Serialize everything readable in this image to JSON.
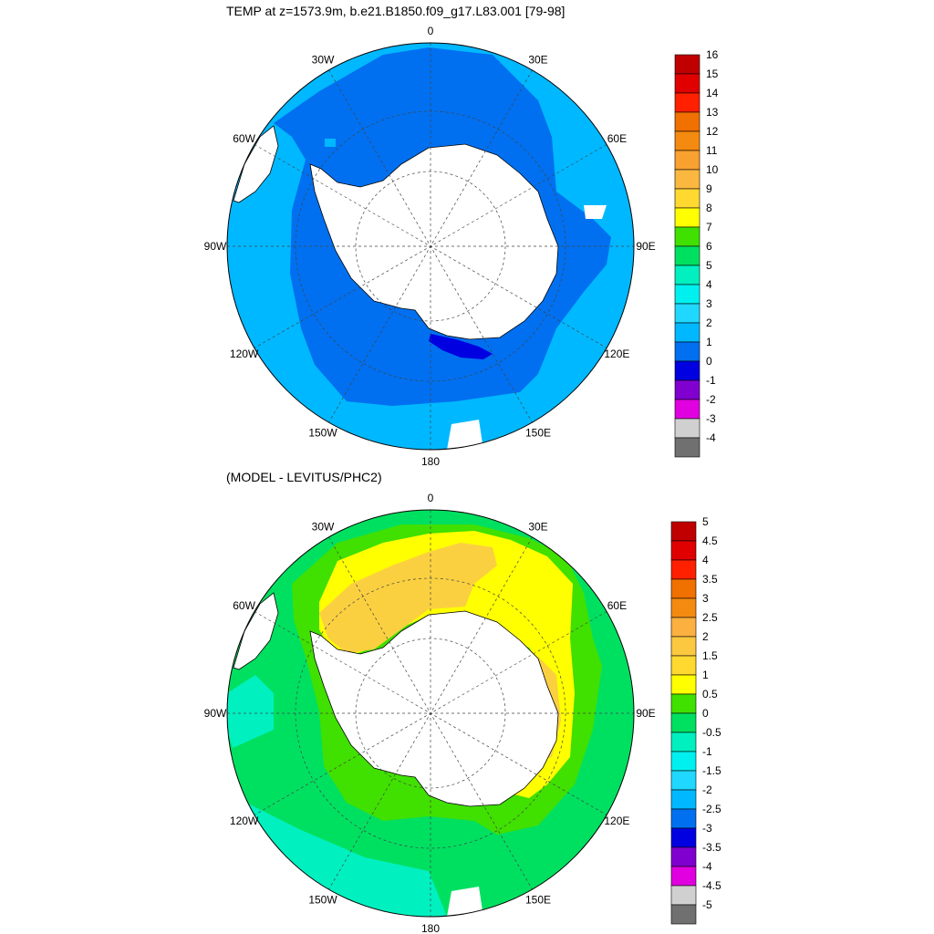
{
  "top": {
    "title": "TEMP at z=1573.9m, b.e21.B1850.f09_g17.L83.001 [79-98]",
    "lon_labels": [
      "0",
      "30E",
      "60E",
      "90E",
      "120E",
      "150E",
      "180",
      "150W",
      "120W",
      "90W",
      "60W",
      "30W"
    ],
    "colorbar": {
      "labels": [
        "16",
        "15",
        "14",
        "13",
        "12",
        "11",
        "10",
        "9",
        "8",
        "7",
        "6",
        "5",
        "4",
        "3",
        "2",
        "1",
        "0",
        "-1",
        "-2",
        "-3",
        "-4"
      ],
      "colors": [
        "#c00000",
        "#e00000",
        "#ff2000",
        "#f07000",
        "#f58a10",
        "#f8a030",
        "#fbb840",
        "#ffd830",
        "#ffff00",
        "#40e000",
        "#00e060",
        "#00f0c0",
        "#00f0f0",
        "#20d8ff",
        "#00b8ff",
        "#0070f0",
        "#0000e0",
        "#8000d0",
        "#e000e0",
        "#d0d0d0",
        "#707070"
      ]
    }
  },
  "bottom": {
    "title": "(MODEL - LEVITUS/PHC2)",
    "lon_labels": [
      "0",
      "30E",
      "60E",
      "90E",
      "120E",
      "150E",
      "180",
      "150W",
      "120W",
      "90W",
      "60W",
      "30W"
    ],
    "colorbar": {
      "labels": [
        "5",
        "4.5",
        "4",
        "3.5",
        "3",
        "2.5",
        "2",
        "1.5",
        "1",
        "0.5",
        "0",
        "-0.5",
        "-1",
        "-1.5",
        "-2",
        "-2.5",
        "-3",
        "-3.5",
        "-4",
        "-4.5",
        "-5"
      ],
      "colors": [
        "#c00000",
        "#e00000",
        "#ff2000",
        "#f07000",
        "#f58a10",
        "#fbb040",
        "#fbc840",
        "#ffd830",
        "#ffff00",
        "#40e000",
        "#00e060",
        "#00f0c0",
        "#00f0f0",
        "#20d8ff",
        "#00b8ff",
        "#0070f0",
        "#0000e0",
        "#8000d0",
        "#e000e0",
        "#d0d0d0",
        "#707070"
      ]
    }
  }
}
